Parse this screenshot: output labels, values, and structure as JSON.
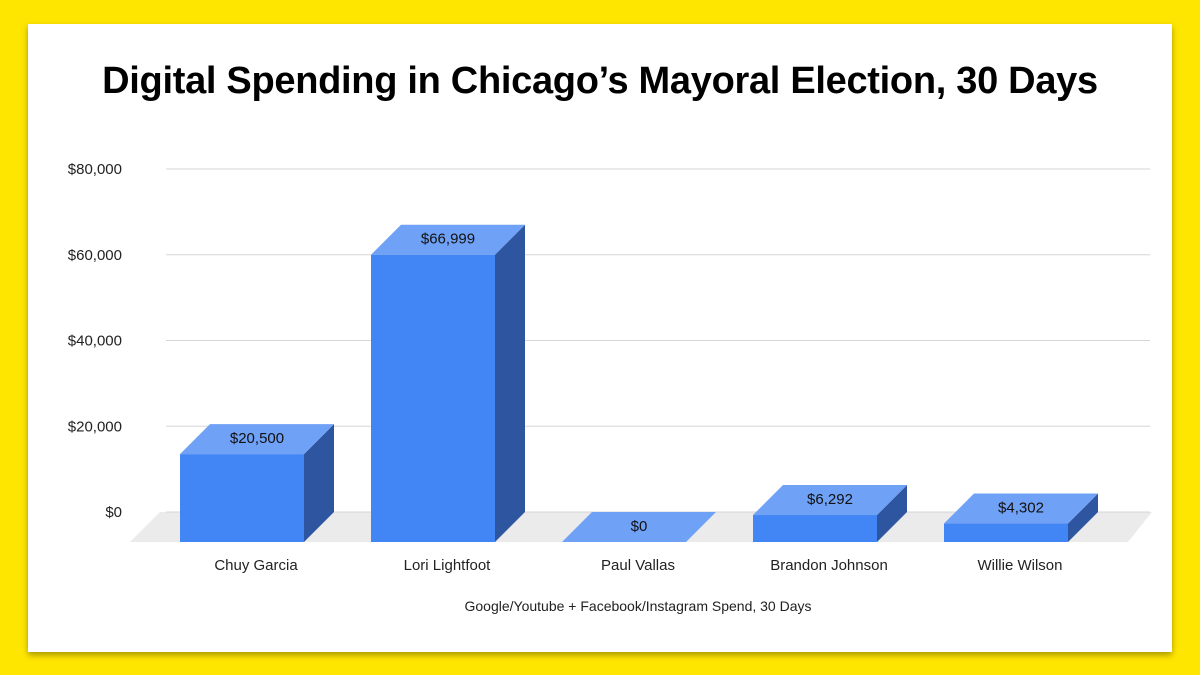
{
  "chart_data": {
    "type": "bar",
    "title": "Digital Spending in Chicago’s Mayoral Election, 30 Days",
    "xlabel": "Google/Youtube + Facebook/Instagram Spend, 30 Days",
    "ylabel": "",
    "categories": [
      "Chuy Garcia",
      "Lori Lightfoot",
      "Paul Vallas",
      "Brandon Johnson",
      "Willie Wilson"
    ],
    "values": [
      20500,
      66999,
      0,
      6292,
      4302
    ],
    "data_labels": [
      "$20,500",
      "$66,999",
      "$0",
      "$6,292",
      "$4,302"
    ],
    "y_ticks": [
      0,
      20000,
      40000,
      60000,
      80000
    ],
    "y_tick_labels": [
      "$0",
      "$20,000",
      "$40,000",
      "$60,000",
      "$80,000"
    ],
    "ylim": [
      0,
      80000
    ],
    "grid": true,
    "legend": "none",
    "style": "3d",
    "colors": {
      "bar_front": "#4285F4",
      "bar_top": "#6FA1F6",
      "bar_side": "#2D55A0",
      "floor": "#EBEBEB",
      "grid": "#D6D6D6"
    }
  }
}
